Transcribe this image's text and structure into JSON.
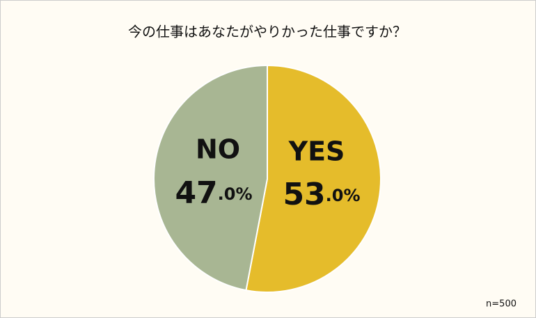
{
  "chart_data": {
    "type": "pie",
    "title": "今の仕事はあなたがやりかった仕事ですか？",
    "categories": [
      "YES",
      "NO"
    ],
    "values": [
      53.0,
      47.0
    ],
    "value_labels": [
      "53.0%",
      "47.0%"
    ],
    "colors": [
      "#e5bc2b",
      "#a8b693"
    ],
    "note": "n=500"
  }
}
